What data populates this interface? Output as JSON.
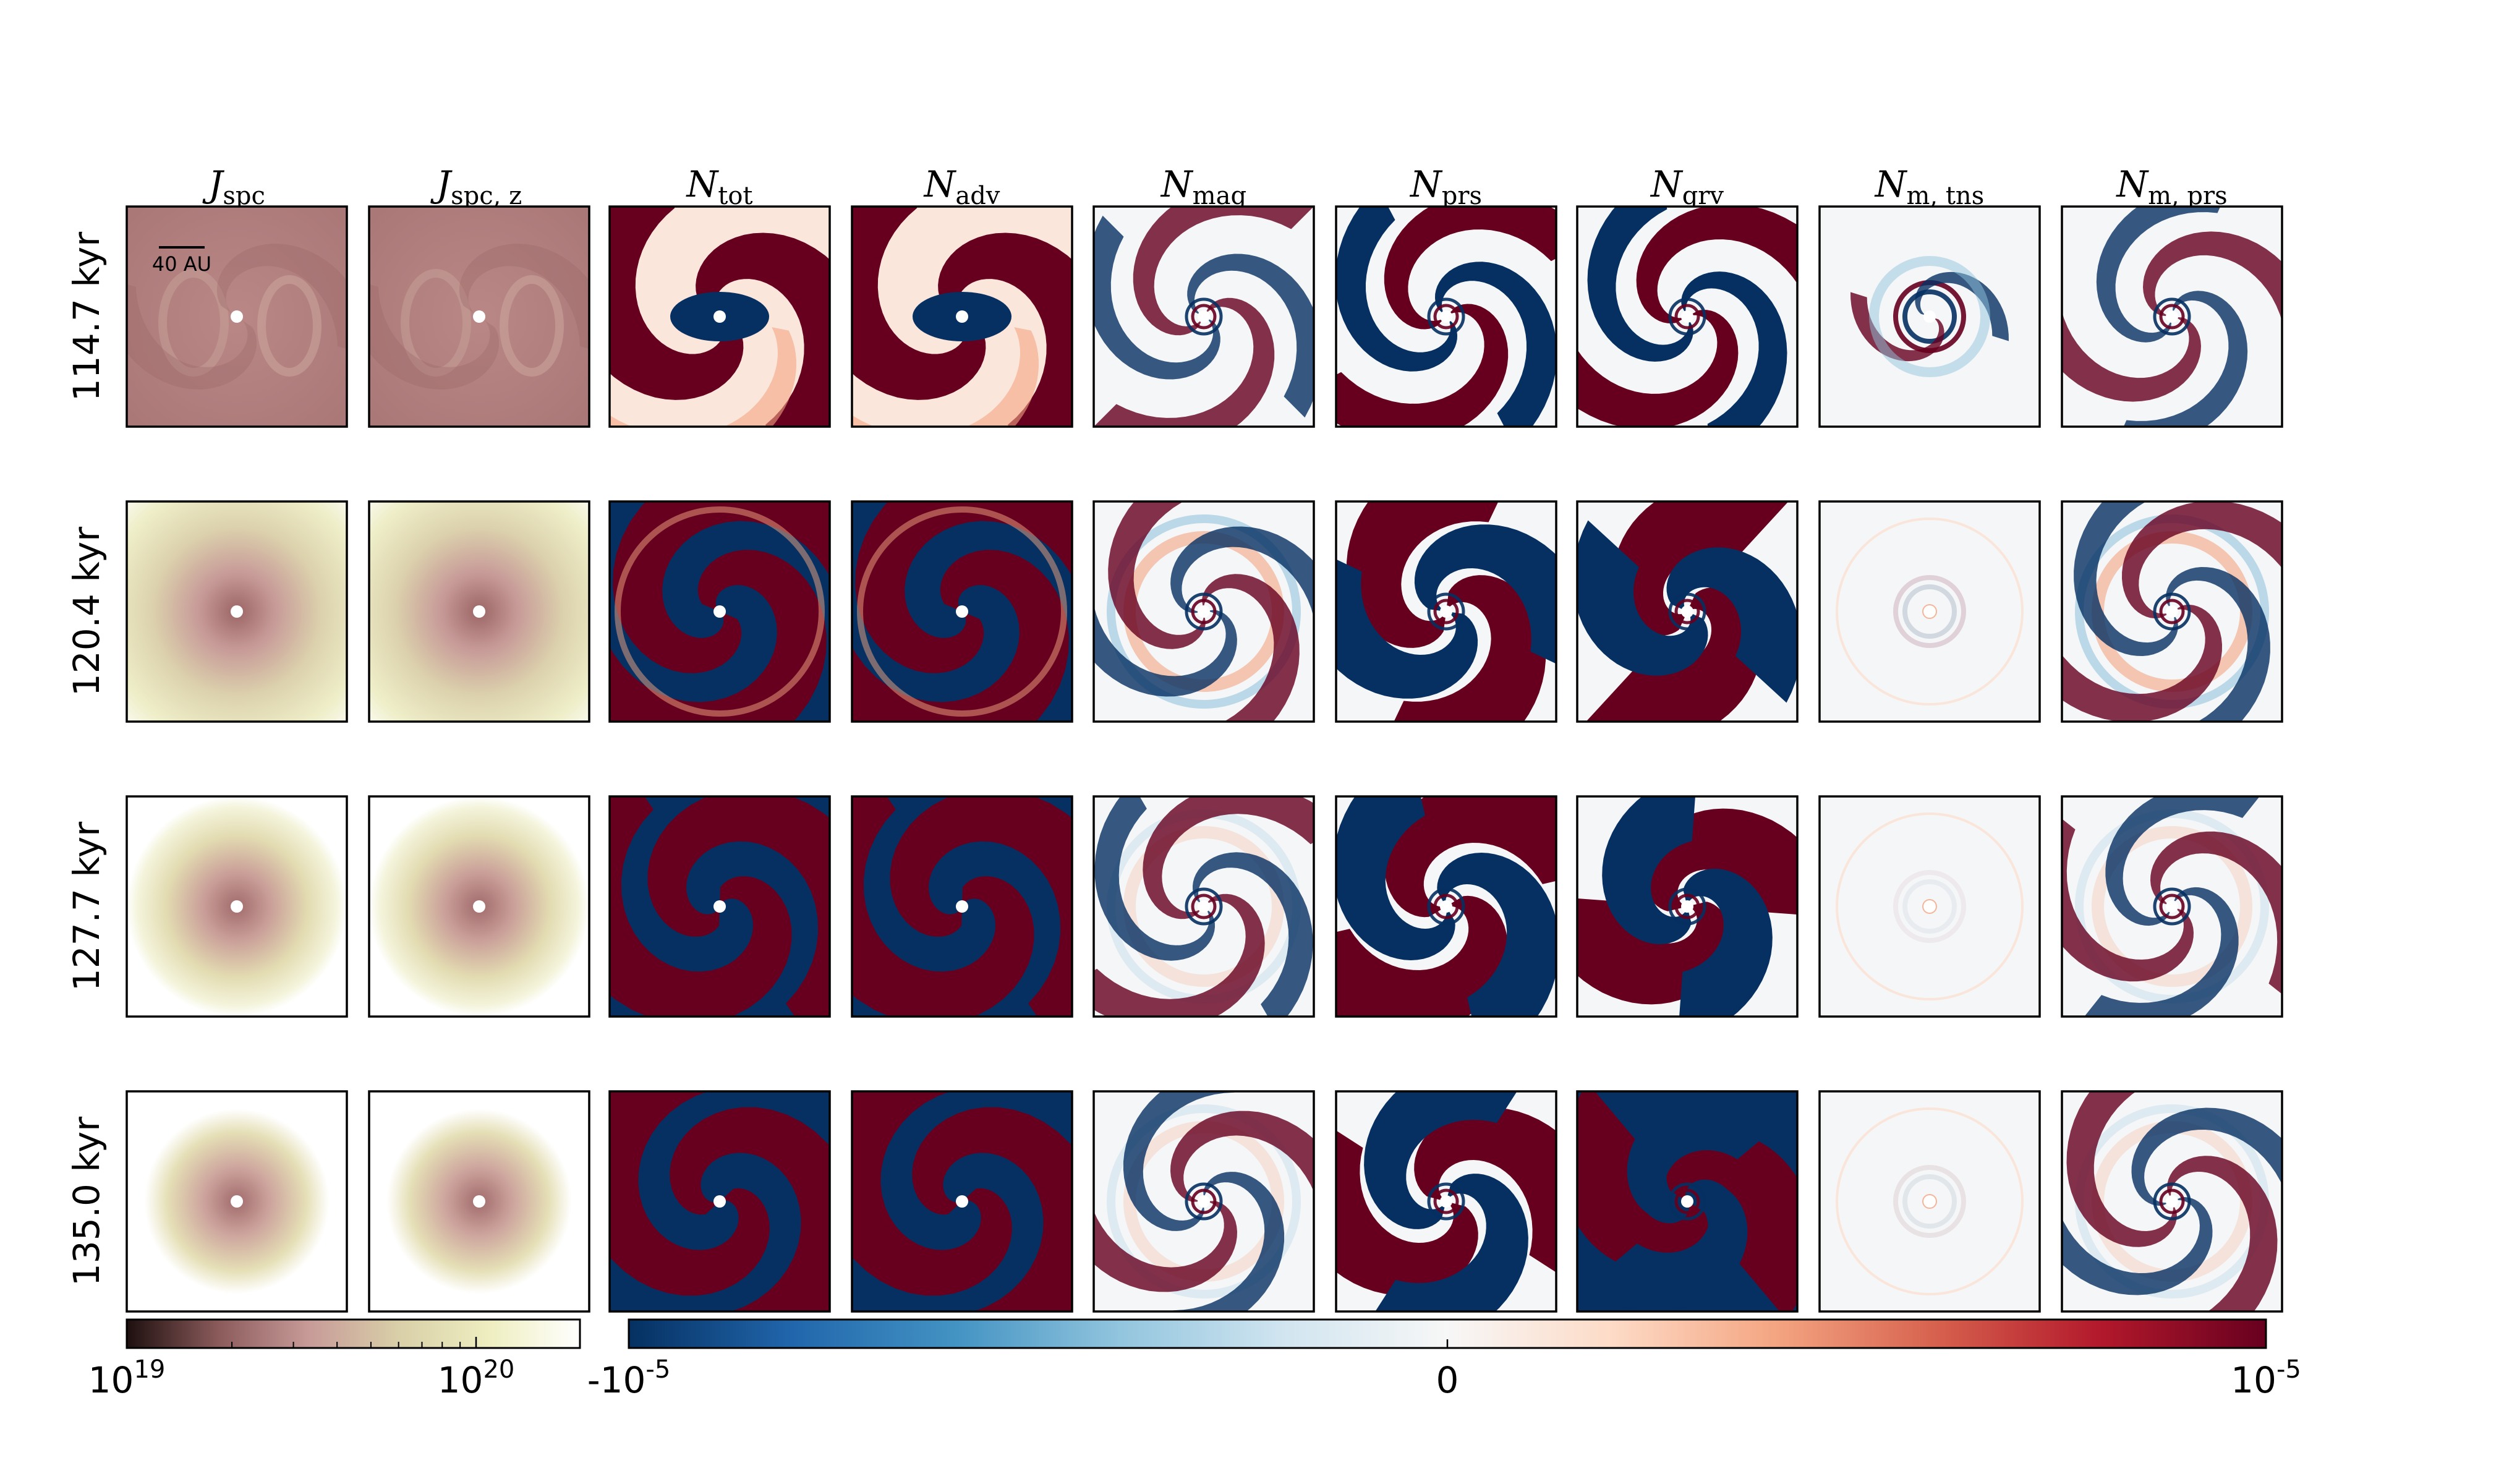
{
  "chart_data": {
    "type": "heatmap",
    "description_grid": "4 time snapshots (rows) x 9 quantities (columns), each panel a face-on map",
    "columns": [
      {
        "symbol": "J",
        "sub": "spc",
        "colormap": "pink"
      },
      {
        "symbol": "J",
        "sub": "spc, z",
        "colormap": "pink"
      },
      {
        "symbol": "N",
        "sub": "tot",
        "colormap": "RdBu_r"
      },
      {
        "symbol": "N",
        "sub": "adv",
        "colormap": "RdBu_r"
      },
      {
        "symbol": "N",
        "sub": "mag",
        "colormap": "RdBu_r"
      },
      {
        "symbol": "N",
        "sub": "prs",
        "colormap": "RdBu_r"
      },
      {
        "symbol": "N",
        "sub": "grv",
        "colormap": "RdBu_r"
      },
      {
        "symbol": "N",
        "sub": "m, tns",
        "colormap": "RdBu_r"
      },
      {
        "symbol": "N",
        "sub": "m, prs",
        "colormap": "RdBu_r"
      }
    ],
    "rows": [
      "114.7 kyr",
      "120.4 kyr",
      "127.7 kyr",
      "135.0 kyr"
    ],
    "scale_bar": "40 AU",
    "colorbar_J": {
      "scale": "log",
      "range": [
        1e+19,
        1e+20
      ],
      "tick_labels": [
        {
          "base": "10",
          "exp": "19"
        },
        {
          "base": "10",
          "exp": "20"
        }
      ],
      "colors": [
        "#1e0f0f",
        "#8a5a5a",
        "#c79a98",
        "#d9cfa8",
        "#eeeec0",
        "#ffffff"
      ]
    },
    "colorbar_N": {
      "scale": "linear",
      "range": [
        -1e-05,
        1e-05
      ],
      "tick_labels": [
        {
          "base": "-10",
          "exp": "-5"
        },
        {
          "base": "0",
          "exp": ""
        },
        {
          "base": "10",
          "exp": "-5"
        }
      ],
      "colors": [
        "#053061",
        "#2166ac",
        "#4393c3",
        "#92c5de",
        "#d1e5f0",
        "#f7f7f7",
        "#fddbc7",
        "#f4a582",
        "#d6604d",
        "#b2182b",
        "#67001f"
      ]
    }
  }
}
